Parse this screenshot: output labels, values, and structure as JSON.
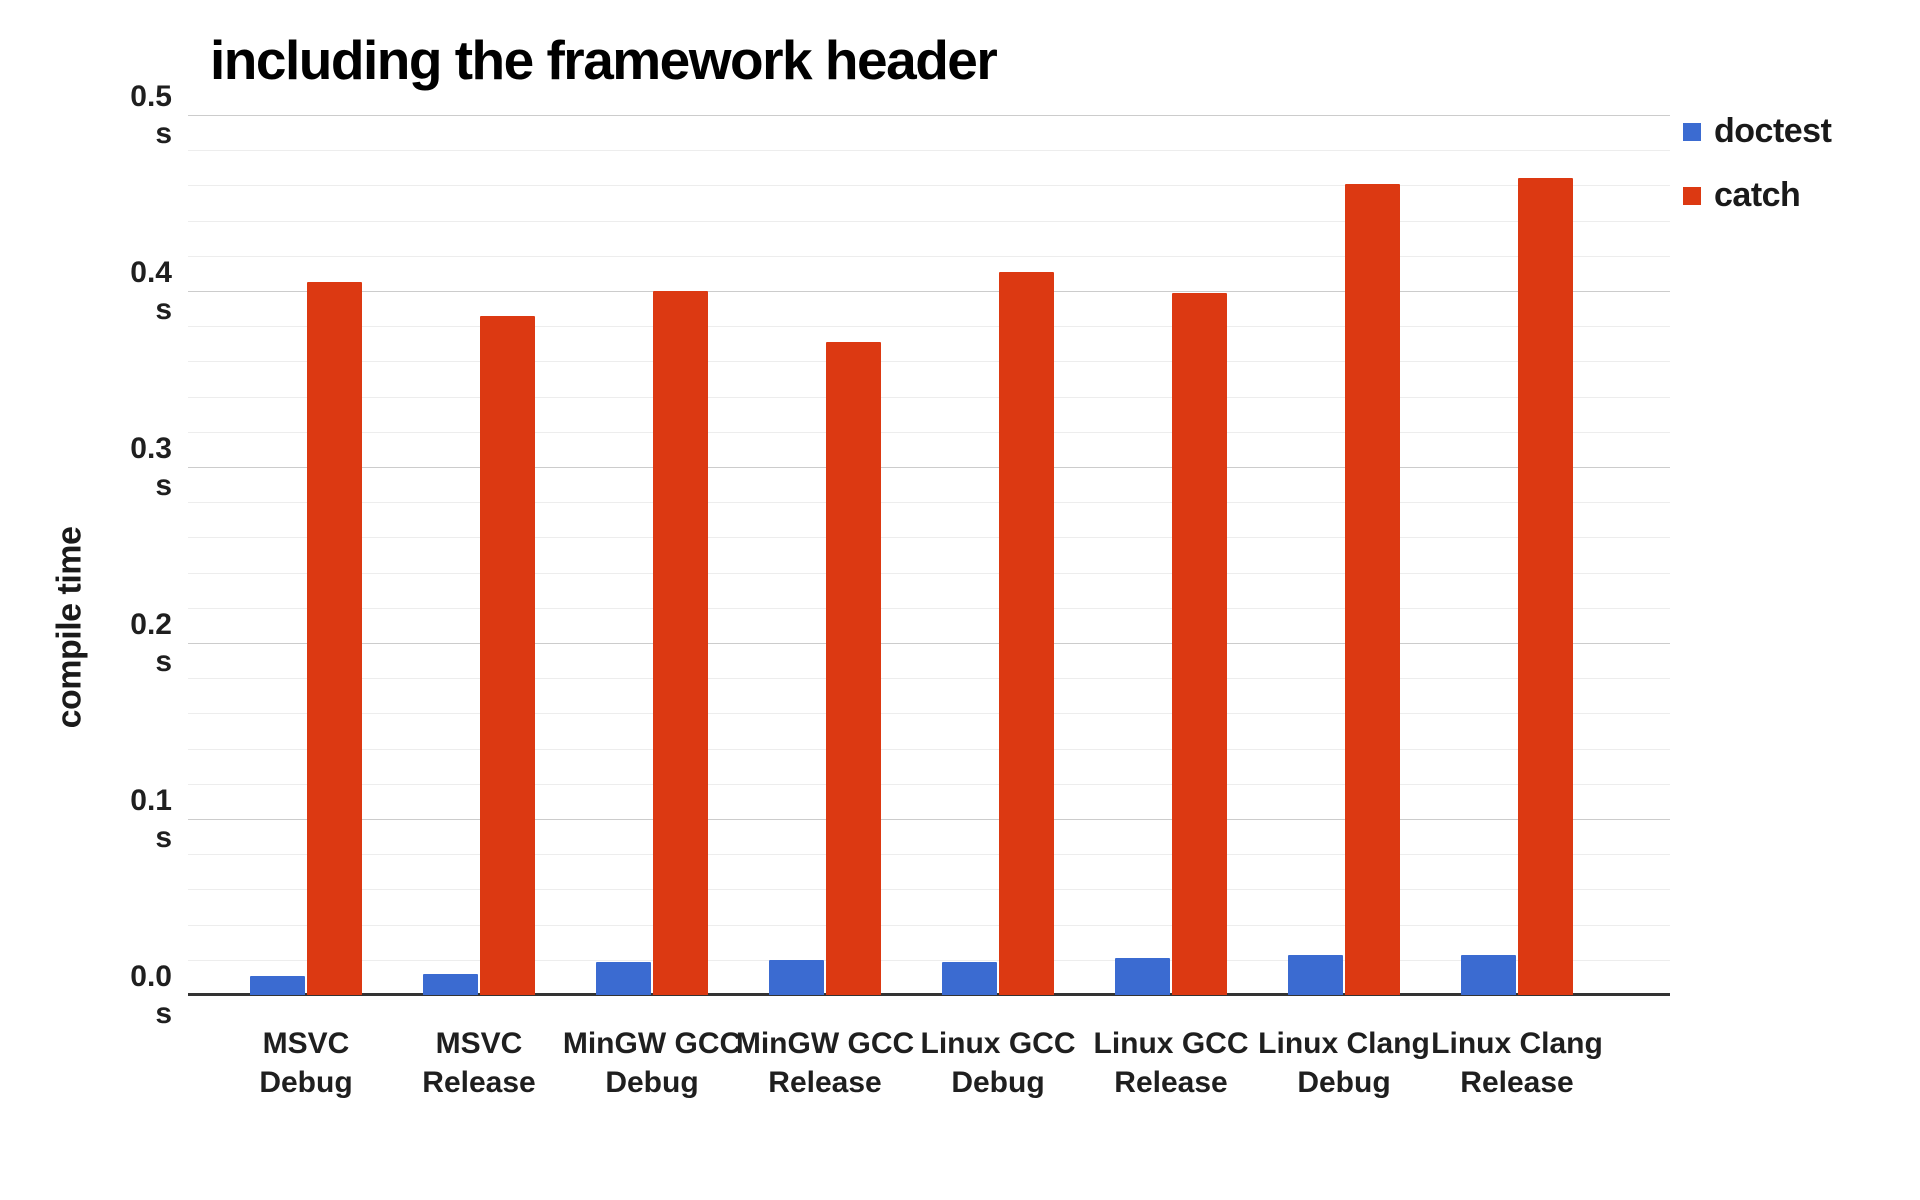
{
  "chart_data": {
    "type": "bar",
    "title": "including the framework header",
    "ylabel": "compile time",
    "unit": "s",
    "categories": [
      "MSVC Debug",
      "MSVC Release",
      "MinGW GCC Debug",
      "MinGW GCC Release",
      "Linux GCC Debug",
      "Linux GCC Release",
      "Linux Clang Debug",
      "Linux Clang Release"
    ],
    "series": [
      {
        "name": "doctest",
        "color": "#3b6bd1",
        "values": [
          0.011,
          0.012,
          0.019,
          0.02,
          0.019,
          0.021,
          0.023,
          0.023
        ]
      },
      {
        "name": "catch",
        "color": "#dc3912",
        "values": [
          0.405,
          0.386,
          0.4,
          0.371,
          0.411,
          0.399,
          0.461,
          0.464
        ]
      }
    ],
    "ylim": [
      0,
      0.5
    ],
    "ytick_step": 0.1,
    "y_minor_step": 0.02,
    "yticks": [
      "0.0",
      "0.1",
      "0.2",
      "0.3",
      "0.4",
      "0.5"
    ],
    "legend_position": "right",
    "grid": true,
    "background": "#ffffff"
  }
}
